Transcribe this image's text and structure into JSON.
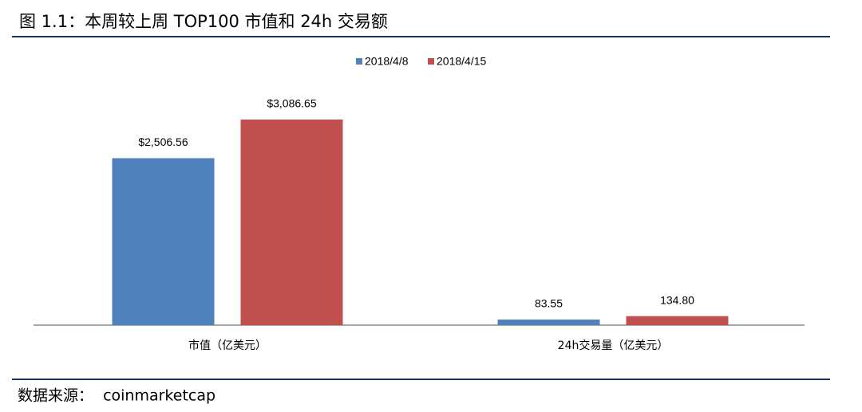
{
  "header": {
    "title": "图 1.1：本周较上周 TOP100 市值和 24h 交易额"
  },
  "chart_data": {
    "type": "bar",
    "categories": [
      "市值（亿美元）",
      "24h交易量（亿美元）"
    ],
    "series": [
      {
        "name": "2018/4/8",
        "color": "#4f81bd",
        "values": [
          2506.56,
          83.55
        ],
        "value_labels": [
          "$2,506.56",
          "83.55"
        ]
      },
      {
        "name": "2018/4/15",
        "color": "#c0504d",
        "values": [
          3086.65,
          134.8
        ],
        "value_labels": [
          "$3,086.65",
          "134.80"
        ]
      }
    ]
  },
  "footer": {
    "source": "数据来源：  coinmarketcap"
  }
}
